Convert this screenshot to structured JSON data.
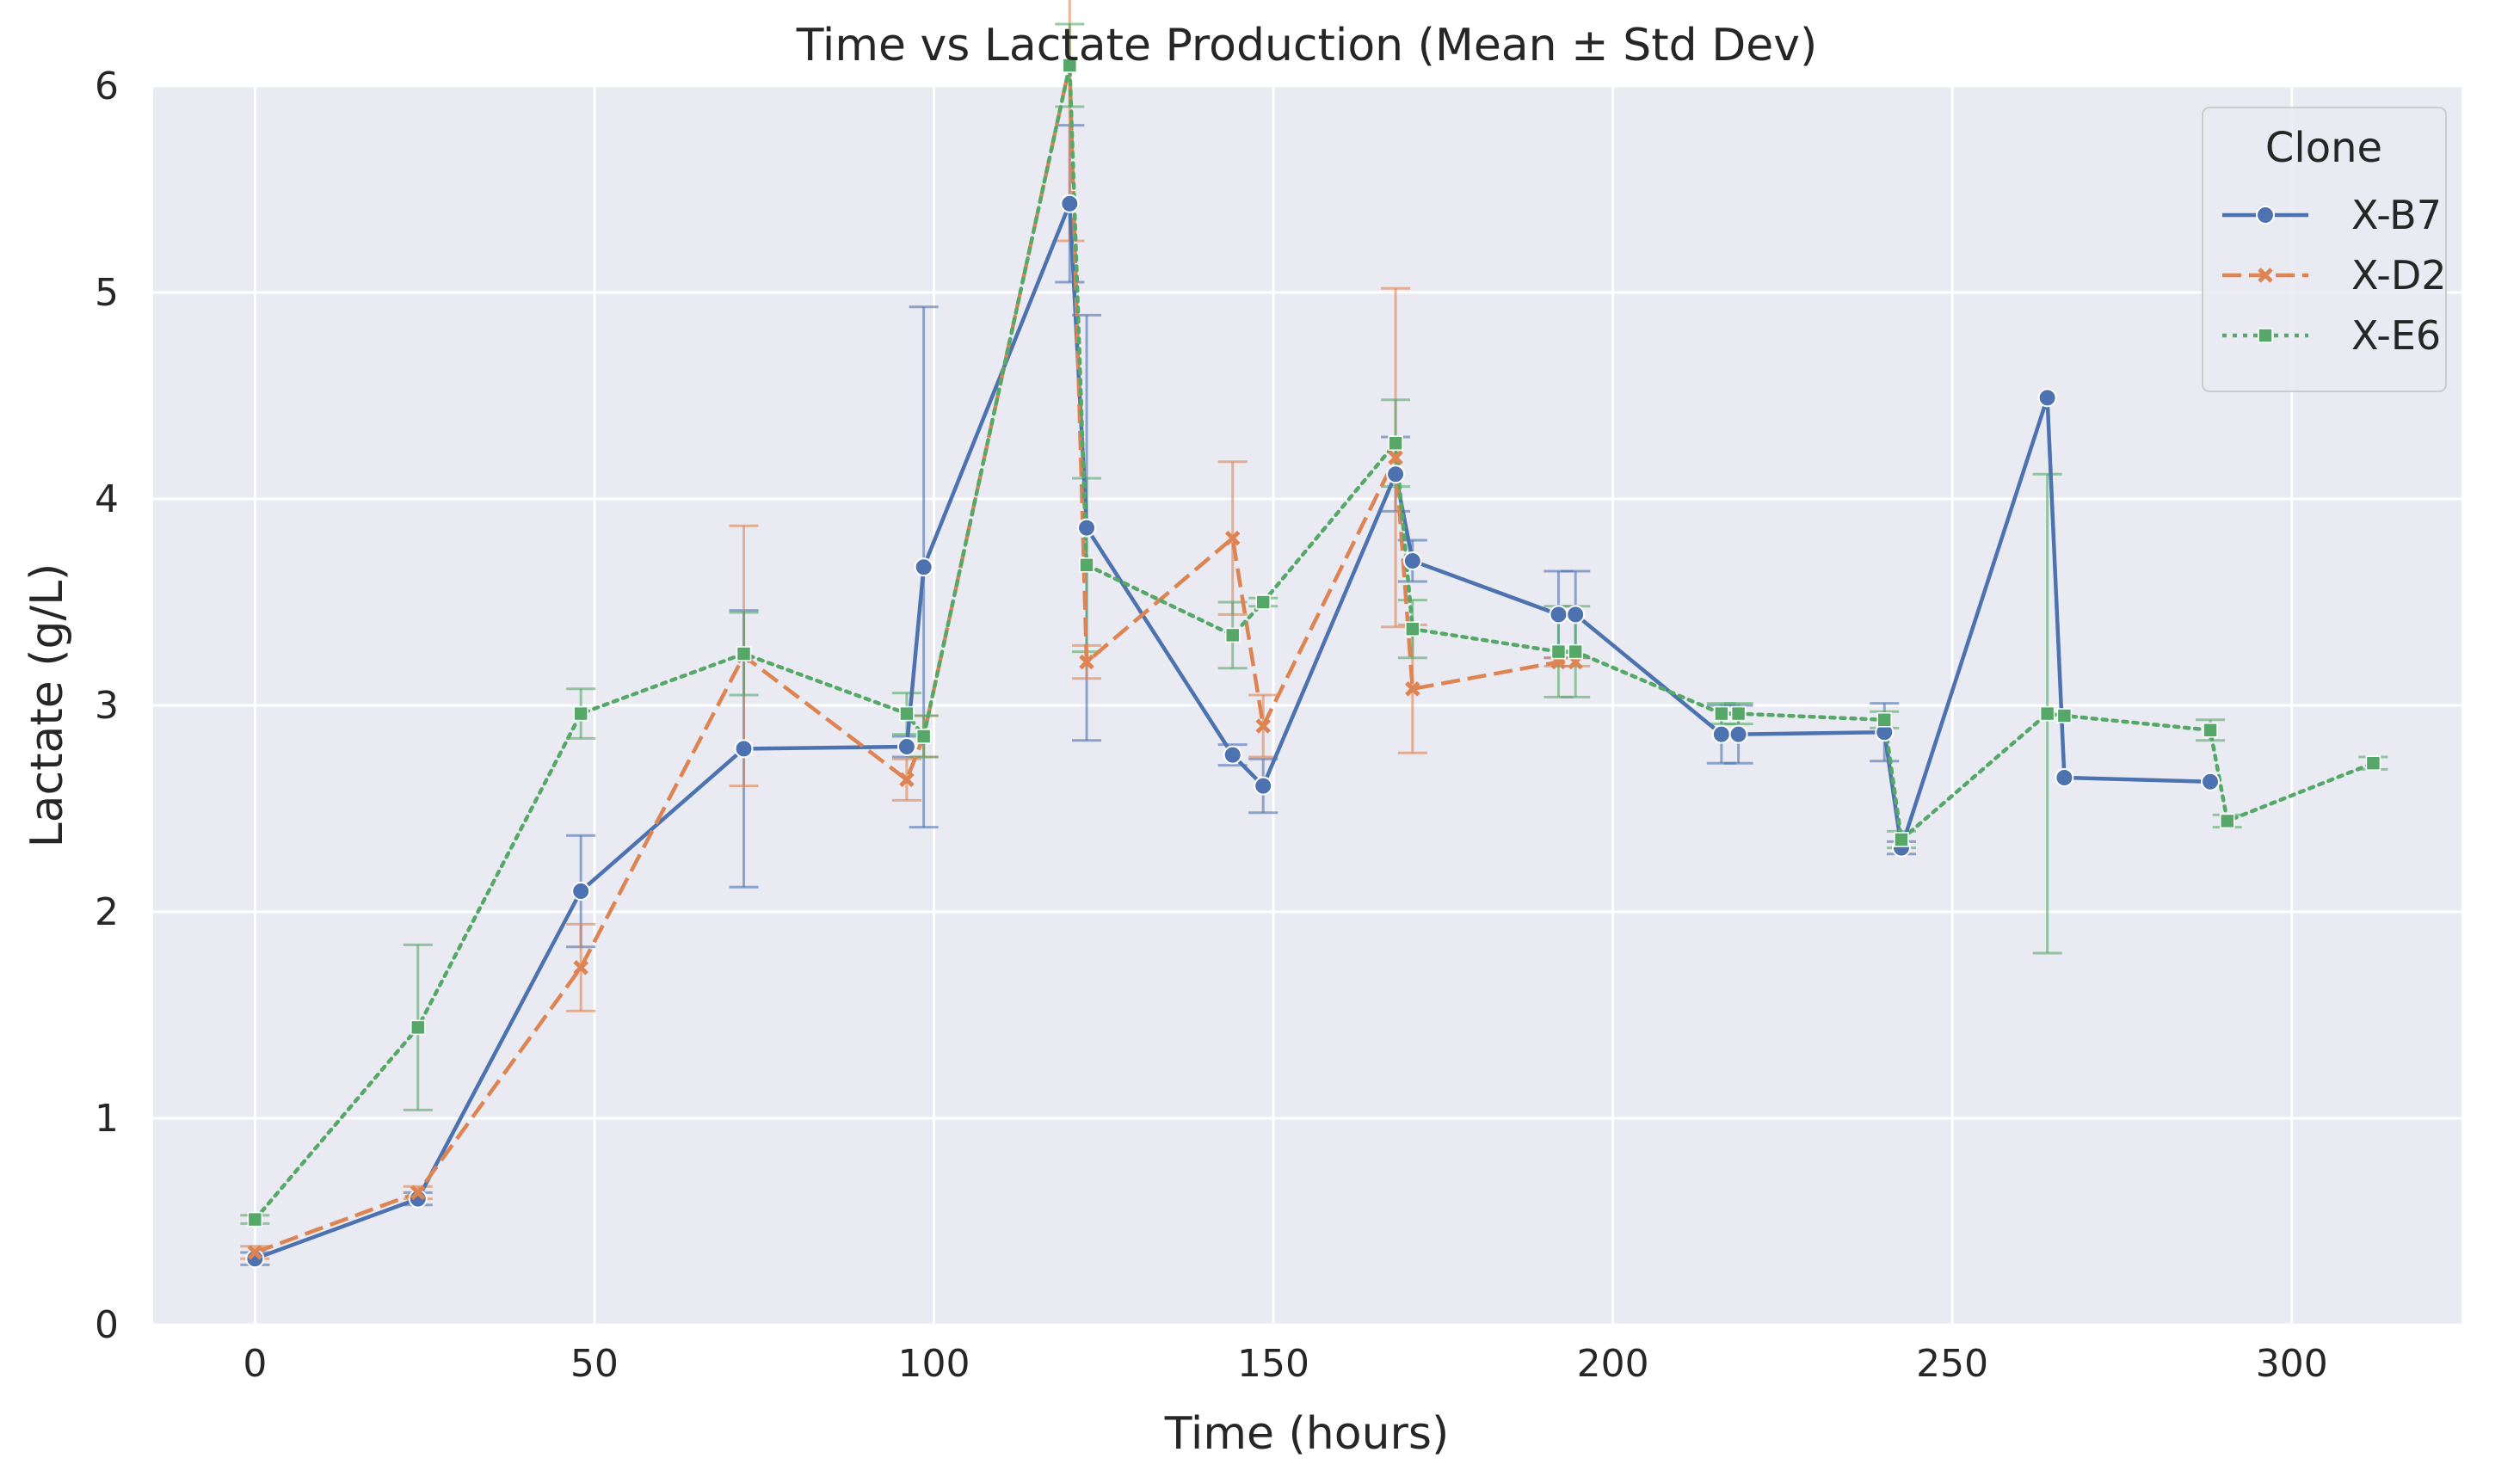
{
  "chart_data": {
    "type": "line",
    "title": "Time vs Lactate Production (Mean ± Std Dev)",
    "xlabel": "Time (hours)",
    "ylabel": "Lactate (g/L)",
    "xlim": [
      -15,
      325
    ],
    "ylim": [
      0,
      6
    ],
    "x_ticks": [
      0,
      50,
      100,
      150,
      200,
      250,
      300
    ],
    "y_ticks": [
      0,
      1,
      2,
      3,
      4,
      5,
      6
    ],
    "grid": true,
    "background": "#eaeaf2",
    "legend": {
      "title": "Clone",
      "placement": "top-right"
    },
    "series": [
      {
        "name": "X-B7",
        "color": "#4c72b0",
        "linestyle": "solid",
        "marker": "circle",
        "points": [
          {
            "x": 0,
            "y": 0.32,
            "sd": 0.03
          },
          {
            "x": 24,
            "y": 0.61,
            "sd": 0.03
          },
          {
            "x": 48,
            "y": 2.1,
            "sd": 0.27
          },
          {
            "x": 72,
            "y": 2.79,
            "sd": 0.67
          },
          {
            "x": 96,
            "y": 2.8,
            "sd": 0.05
          },
          {
            "x": 98.5,
            "y": 3.67,
            "sd": 1.26
          },
          {
            "x": 120,
            "y": 5.43,
            "sd": 0.38
          },
          {
            "x": 122.5,
            "y": 3.86,
            "sd": 1.03
          },
          {
            "x": 144,
            "y": 2.76,
            "sd": 0.05
          },
          {
            "x": 148.5,
            "y": 2.61,
            "sd": 0.13
          },
          {
            "x": 168,
            "y": 4.12,
            "sd": 0.18
          },
          {
            "x": 170.5,
            "y": 3.7,
            "sd": 0.1
          },
          {
            "x": 192,
            "y": 3.44,
            "sd": 0.21
          },
          {
            "x": 194.5,
            "y": 3.44,
            "sd": 0.21
          },
          {
            "x": 216,
            "y": 2.86,
            "sd": 0.14
          },
          {
            "x": 218.5,
            "y": 2.86,
            "sd": 0.14
          },
          {
            "x": 240,
            "y": 2.87,
            "sd": 0.14
          },
          {
            "x": 242.5,
            "y": 2.31,
            "sd": 0.03
          },
          {
            "x": 264,
            "y": 4.49,
            "sd": 0.0
          },
          {
            "x": 266.5,
            "y": 2.65,
            "sd": 0.0
          },
          {
            "x": 288,
            "y": 2.63,
            "sd": 0.0
          }
        ]
      },
      {
        "name": "X-D2",
        "color": "#dd8452",
        "linestyle": "dashed",
        "marker": "x",
        "points": [
          {
            "x": 0,
            "y": 0.35,
            "sd": 0.03
          },
          {
            "x": 24,
            "y": 0.64,
            "sd": 0.03
          },
          {
            "x": 48,
            "y": 1.73,
            "sd": 0.21
          },
          {
            "x": 72,
            "y": 3.24,
            "sd": 0.63
          },
          {
            "x": 96,
            "y": 2.64,
            "sd": 0.1
          },
          {
            "x": 98.5,
            "y": 2.85,
            "sd": 0.1
          },
          {
            "x": 120,
            "y": 6.1,
            "sd": 0.85
          },
          {
            "x": 122.5,
            "y": 3.21,
            "sd": 0.08
          },
          {
            "x": 144,
            "y": 3.81,
            "sd": 0.37
          },
          {
            "x": 148.5,
            "y": 2.9,
            "sd": 0.15
          },
          {
            "x": 168,
            "y": 4.2,
            "sd": 0.82
          },
          {
            "x": 170.5,
            "y": 3.08,
            "sd": 0.31
          },
          {
            "x": 192,
            "y": 3.21,
            "sd": 0.02
          },
          {
            "x": 194.5,
            "y": 3.21,
            "sd": 0.02
          }
        ]
      },
      {
        "name": "X-E6",
        "color": "#55a868",
        "linestyle": "dotted",
        "marker": "square",
        "points": [
          {
            "x": 0,
            "y": 0.51,
            "sd": 0.02
          },
          {
            "x": 24,
            "y": 1.44,
            "sd": 0.4
          },
          {
            "x": 48,
            "y": 2.96,
            "sd": 0.12
          },
          {
            "x": 72,
            "y": 3.25,
            "sd": 0.2
          },
          {
            "x": 96,
            "y": 2.96,
            "sd": 0.1
          },
          {
            "x": 98.5,
            "y": 2.85,
            "sd": 0.1
          },
          {
            "x": 120,
            "y": 6.1,
            "sd": 0.2
          },
          {
            "x": 122.5,
            "y": 3.68,
            "sd": 0.42
          },
          {
            "x": 144,
            "y": 3.34,
            "sd": 0.16
          },
          {
            "x": 148.5,
            "y": 3.5,
            "sd": 0.02
          },
          {
            "x": 168,
            "y": 4.27,
            "sd": 0.21
          },
          {
            "x": 170.5,
            "y": 3.37,
            "sd": 0.14
          },
          {
            "x": 192,
            "y": 3.26,
            "sd": 0.22
          },
          {
            "x": 194.5,
            "y": 3.26,
            "sd": 0.22
          },
          {
            "x": 216,
            "y": 2.96,
            "sd": 0.05
          },
          {
            "x": 218.5,
            "y": 2.96,
            "sd": 0.05
          },
          {
            "x": 240,
            "y": 2.93,
            "sd": 0.04
          },
          {
            "x": 242.5,
            "y": 2.35,
            "sd": 0.04
          },
          {
            "x": 264,
            "y": 2.96,
            "sd": 1.16
          },
          {
            "x": 266.5,
            "y": 2.95,
            "sd": 0.0
          },
          {
            "x": 288,
            "y": 2.88,
            "sd": 0.05
          },
          {
            "x": 290.5,
            "y": 2.44,
            "sd": 0.03
          },
          {
            "x": 312,
            "y": 2.72,
            "sd": 0.03
          }
        ]
      }
    ]
  }
}
